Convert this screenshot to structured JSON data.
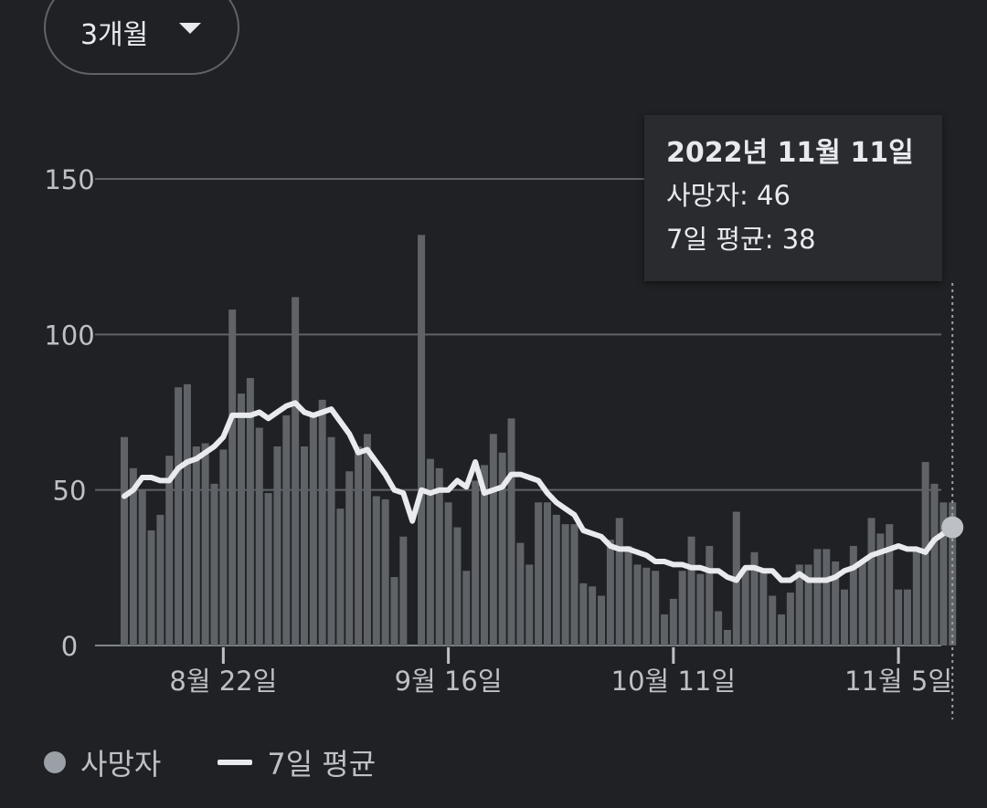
{
  "range_selector": {
    "label": "3개월",
    "icon": "caret-down-icon"
  },
  "tooltip": {
    "date": "2022년 11월 11일",
    "deaths": "사망자: 46",
    "avg": "7일 평균: 38"
  },
  "legend": {
    "bars_label": "사망자",
    "line_label": "7일 평균"
  },
  "colors": {
    "background": "#202124",
    "bar": "#5f6368",
    "line": "#e8eaed",
    "grid": "#5f6368",
    "text": "#bdc1c6"
  },
  "chart_data": {
    "type": "bar",
    "x_start": "2022-08-11",
    "x_end": "2022-11-11",
    "ylim": [
      0,
      150
    ],
    "yticks": [
      0,
      50,
      100,
      150
    ],
    "xticks": [
      {
        "label": "8월 22일",
        "date": "2022-08-22"
      },
      {
        "label": "9월 16일",
        "date": "2022-09-16"
      },
      {
        "label": "10월 11일",
        "date": "2022-10-11"
      },
      {
        "label": "11월 5일",
        "date": "2022-11-05"
      }
    ],
    "series": [
      {
        "name": "사망자",
        "type": "bar",
        "values": [
          67,
          57,
          50,
          37,
          42,
          61,
          83,
          84,
          64,
          65,
          52,
          63,
          108,
          81,
          86,
          70,
          49,
          64,
          74,
          112,
          64,
          74,
          79,
          67,
          44,
          56,
          64,
          68,
          48,
          47,
          22,
          35,
          0,
          132,
          60,
          57,
          46,
          38,
          24,
          53,
          58,
          68,
          62,
          73,
          33,
          26,
          46,
          46,
          42,
          39,
          39,
          20,
          19,
          16,
          34,
          41,
          32,
          26,
          25,
          24,
          10,
          15,
          24,
          35,
          23,
          32,
          11,
          5,
          43,
          25,
          30,
          24,
          16,
          10,
          17,
          26,
          26,
          31,
          31,
          27,
          18,
          32,
          27,
          41,
          36,
          39,
          18,
          18,
          31,
          59,
          52,
          46,
          46
        ]
      },
      {
        "name": "7일 평균",
        "type": "line",
        "values": [
          48,
          50,
          54,
          54,
          53,
          53,
          57,
          59,
          60,
          62,
          64,
          67,
          74,
          74,
          74,
          75,
          73,
          75,
          77,
          78,
          75,
          74,
          75,
          76,
          72,
          68,
          62,
          63,
          59,
          55,
          50,
          49,
          40,
          50,
          49,
          50,
          50,
          53,
          51,
          59,
          49,
          50,
          51,
          55,
          55,
          54,
          53,
          49,
          46,
          44,
          42,
          37,
          36,
          35,
          32,
          31,
          31,
          30,
          29,
          27,
          27,
          26,
          26,
          25,
          25,
          24,
          24,
          22,
          21,
          25,
          25,
          24,
          24,
          21,
          21,
          23,
          21,
          21,
          21,
          22,
          24,
          25,
          27,
          29,
          30,
          31,
          32,
          31,
          31,
          30,
          34,
          36,
          38
        ]
      }
    ]
  }
}
